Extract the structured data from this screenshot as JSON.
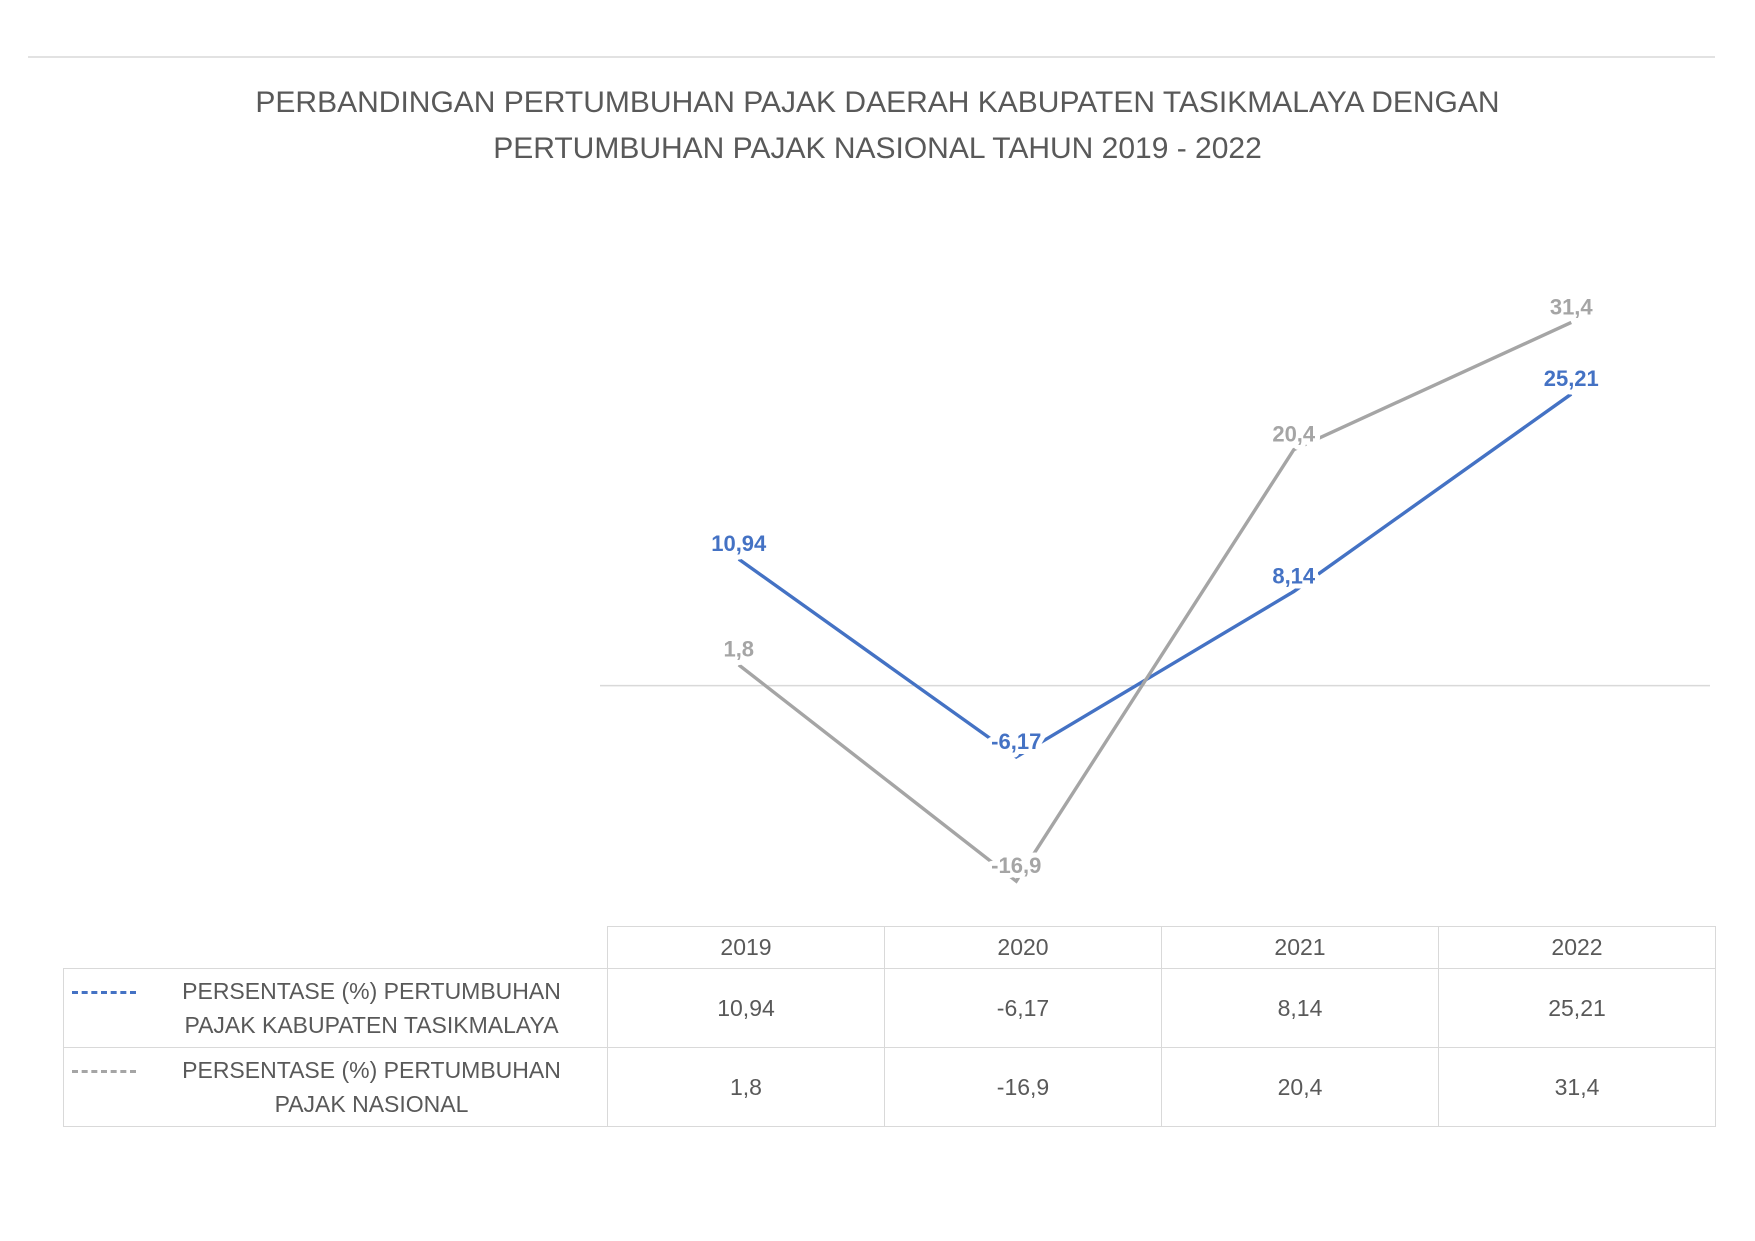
{
  "chart_data": {
    "type": "line",
    "title": "PERBANDINGAN PERTUMBUHAN PAJAK DAERAH KABUPATEN TASIKMALAYA DENGAN PERTUMBUHAN PAJAK NASIONAL TAHUN 2019 - 2022",
    "categories": [
      "2019",
      "2020",
      "2021",
      "2022"
    ],
    "ylim": [
      -20,
      40
    ],
    "series": [
      {
        "name": "PERSENTASE (%) PERTUMBUHAN PAJAK KABUPATEN TASIKMALAYA",
        "color": "#4472c4",
        "values": [
          10.94,
          -6.17,
          8.14,
          25.21
        ],
        "value_labels": [
          "10,94",
          "-6,17",
          "8,14",
          "25,21"
        ]
      },
      {
        "name": "PERSENTASE (%) PERTUMBUHAN PAJAK NASIONAL",
        "color": "#a5a5a5",
        "values": [
          1.8,
          -16.9,
          20.4,
          31.4
        ],
        "value_labels": [
          "1,8",
          "-16,9",
          "20,4",
          "31,4"
        ]
      }
    ]
  }
}
